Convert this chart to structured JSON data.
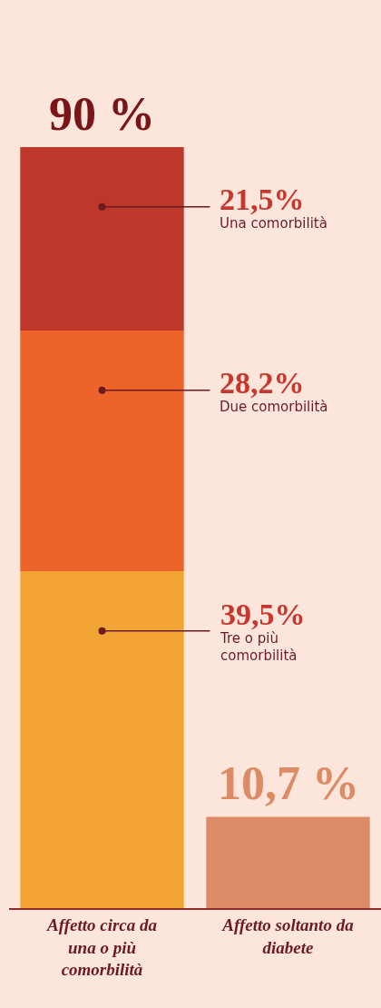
{
  "chart_data": {
    "type": "bar",
    "stacked": true,
    "categories": [
      "Affetto circa da una o più comorbilità",
      "Affetto soltanto da diabete"
    ],
    "series": [
      {
        "name": "Tre o più comorbilità",
        "color": "#f2a535",
        "values": [
          39.5,
          null
        ],
        "value_labels": [
          "39,5%",
          null
        ]
      },
      {
        "name": "Due comorbilità",
        "color": "#ec6429",
        "values": [
          28.2,
          null
        ],
        "value_labels": [
          "28,2%",
          null
        ]
      },
      {
        "name": "Una comorbilità",
        "color": "#bd372a",
        "values": [
          21.5,
          null
        ],
        "value_labels": [
          "21,5%",
          null
        ]
      },
      {
        "color": "#dc8b66",
        "values": [
          null,
          10.7
        ]
      }
    ],
    "totals": [
      "90 %",
      "10,7 %"
    ],
    "legend": false,
    "grid": false
  }
}
